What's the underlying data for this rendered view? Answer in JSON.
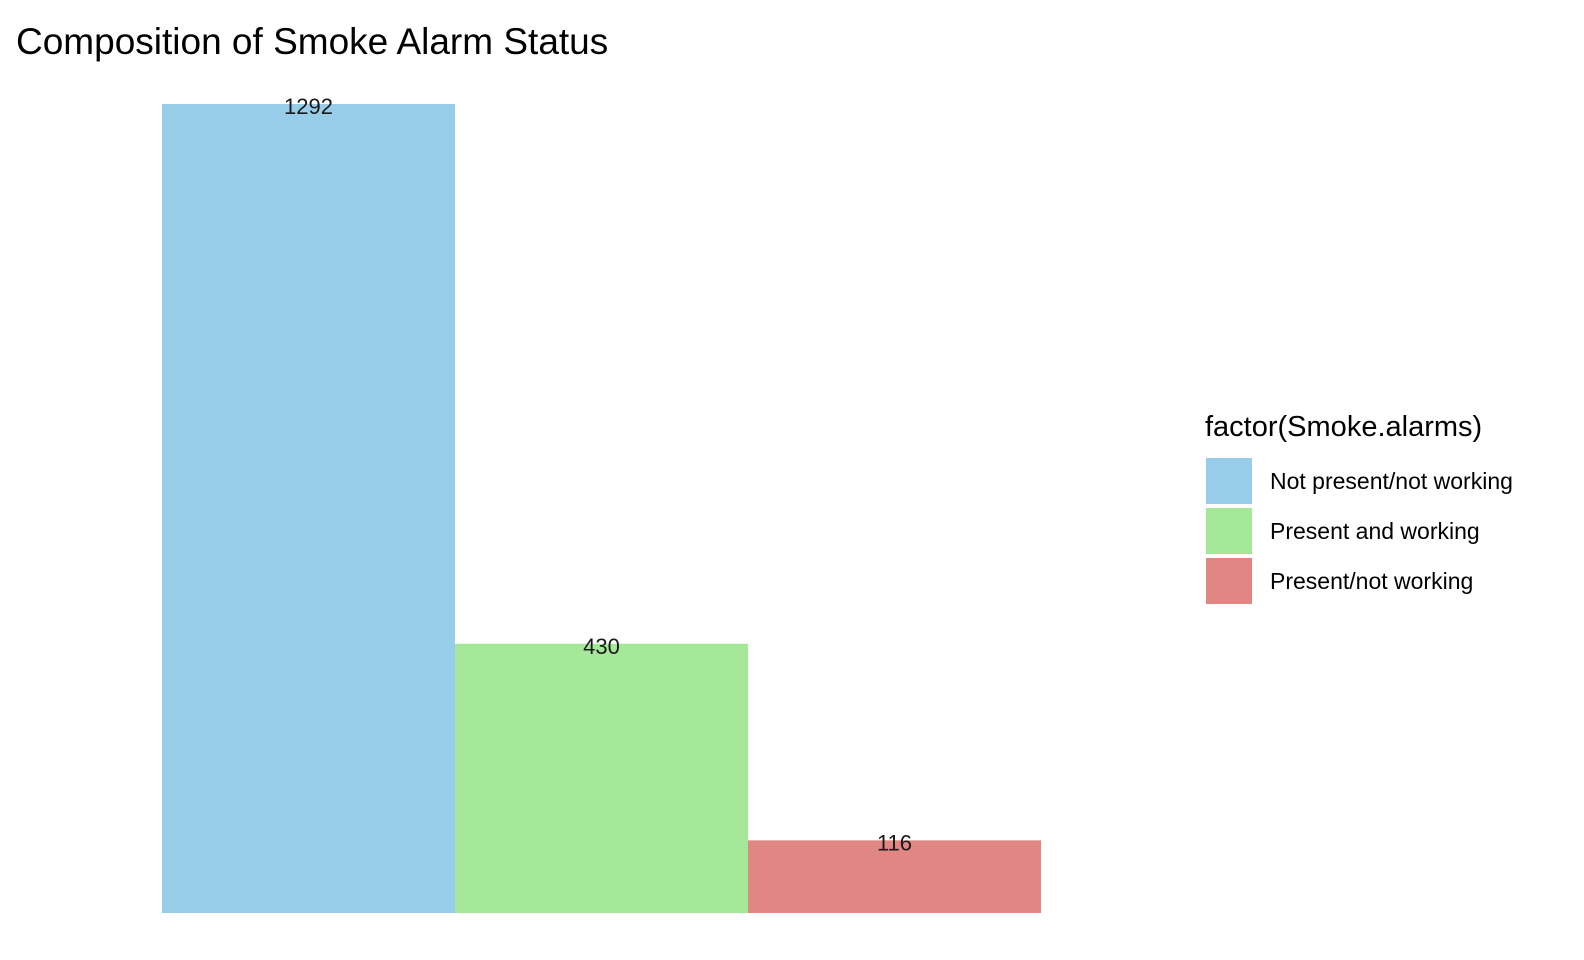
{
  "chart_data": {
    "type": "bar",
    "title": "Composition of Smoke Alarm Status",
    "xlabel": "",
    "ylabel": "",
    "categories": [
      "Not present/not working",
      "Present and working",
      "Present/not working"
    ],
    "values": [
      1292,
      430,
      116
    ],
    "data_labels": [
      "1292",
      "430",
      "116"
    ],
    "colors": [
      "#97cde9",
      "#a6e899",
      "#e08683"
    ],
    "ylim": [
      0,
      1292
    ],
    "grid": false,
    "axes_visible": false,
    "legend": {
      "title": "factor(Smoke.alarms)",
      "placement": "right",
      "items": [
        "Not present/not working",
        "Present and working",
        "Present/not working"
      ]
    }
  }
}
